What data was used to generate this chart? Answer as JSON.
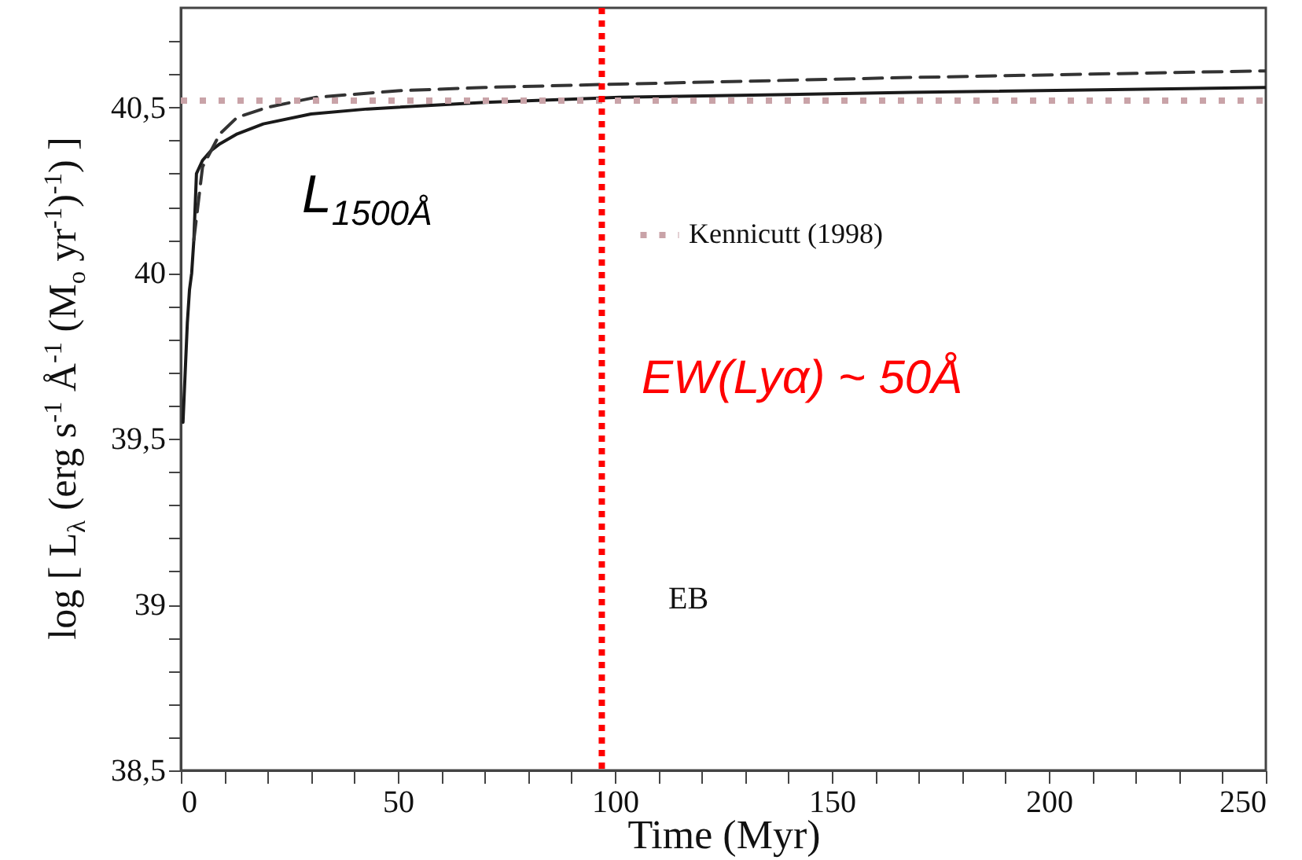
{
  "chart_data": {
    "type": "line",
    "xlabel": "Time (Myr)",
    "ylabel": "log [ L$_{λ}$ (erg s$^{-1}$ Å$^{-1}$ (M$_{o}$ yr$^{-1}$)$^{-1}$) ]",
    "xlim": [
      0,
      250
    ],
    "xticks": [
      0,
      {
        "value": 10,
        "label": null
      },
      {
        "value": 20,
        "label": null
      },
      {
        "value": 30,
        "label": null
      },
      {
        "value": 40,
        "label": null
      },
      50,
      {
        "value": 60,
        "label": null
      },
      {
        "value": 70,
        "label": null
      },
      {
        "value": 80,
        "label": null
      },
      {
        "value": 90,
        "label": null
      },
      100,
      {
        "value": 110,
        "label": null
      },
      {
        "value": 120,
        "label": null
      },
      {
        "value": 130,
        "label": null
      },
      {
        "value": 140,
        "label": null
      },
      150,
      {
        "value": 160,
        "label": null
      },
      {
        "value": 170,
        "label": null
      },
      {
        "value": 180,
        "label": null
      },
      {
        "value": 190,
        "label": null
      },
      200,
      {
        "value": 210,
        "label": null
      },
      {
        "value": 220,
        "label": null
      },
      {
        "value": 230,
        "label": null
      },
      {
        "value": 240,
        "label": null
      },
      250
    ],
    "ylim": [
      38.5,
      40.8
    ],
    "yticks": [
      {
        "value": 38.5,
        "label": "38,5"
      },
      {
        "value": 38.6,
        "label": null
      },
      {
        "value": 38.7,
        "label": null
      },
      {
        "value": 38.8,
        "label": null
      },
      {
        "value": 38.9,
        "label": null
      },
      39,
      {
        "value": 39.1,
        "label": null
      },
      {
        "value": 39.2,
        "label": null
      },
      {
        "value": 39.3,
        "label": null
      },
      {
        "value": 39.4,
        "label": null
      },
      {
        "value": 39.5,
        "label": "39,5"
      },
      {
        "value": 39.6,
        "label": null
      },
      {
        "value": 39.7,
        "label": null
      },
      {
        "value": 39.8,
        "label": null
      },
      {
        "value": 39.9,
        "label": null
      },
      40,
      {
        "value": 40.1,
        "label": null
      },
      {
        "value": 40.2,
        "label": null
      },
      {
        "value": 40.3,
        "label": null
      },
      {
        "value": 40.4,
        "label": null
      },
      {
        "value": 40.5,
        "label": "40,5"
      },
      {
        "value": 40.6,
        "label": null
      },
      {
        "value": 40.7,
        "label": null
      }
    ],
    "grid": false,
    "legend": "top",
    "series": [
      {
        "color": "#1a1a1a",
        "line_style": "solid",
        "x": [
          0.5,
          1,
          1.5,
          2,
          2.5,
          3,
          3.6,
          5,
          7,
          9,
          13,
          19,
          30,
          43,
          70,
          101,
          168,
          250
        ],
        "values": [
          39.55,
          39.7,
          39.85,
          39.95,
          40.0,
          40.1,
          40.3,
          40.34,
          40.37,
          40.39,
          40.42,
          40.45,
          40.48,
          40.495,
          40.515,
          40.53,
          40.545,
          40.56
        ]
      },
      {
        "color": "#333333",
        "line_style": "dashed",
        "x": [
          3,
          5,
          9,
          13,
          20,
          31,
          50,
          70,
          101,
          168,
          250
        ],
        "values": [
          40.1,
          40.32,
          40.42,
          40.47,
          40.5,
          40.53,
          40.55,
          40.56,
          40.57,
          40.59,
          40.61
        ]
      },
      {
        "name": "Kennicutt (1998)",
        "color": "#c9a3a8",
        "line_style": "dotted",
        "x": [
          0,
          250
        ],
        "values": [
          40.52,
          40.52
        ]
      }
    ],
    "ref_lines": [
      {
        "axis": "x",
        "value": 97,
        "color": "#ff0000",
        "line_style": "dotted"
      }
    ],
    "annotations": [
      "L$_{1500Å}$",
      "EW(Lyα) ~ 50Å",
      "EB"
    ]
  }
}
